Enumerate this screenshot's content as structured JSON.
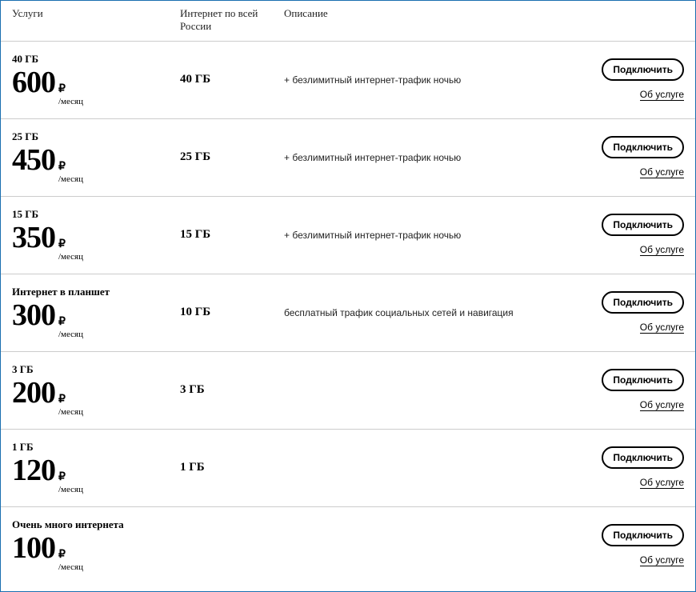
{
  "headers": {
    "service": "Услуги",
    "internet": "Интернет по всей России",
    "description": "Описание"
  },
  "currency_symbol": "₽",
  "period_label": "/месяц",
  "connect_label": "Подключить",
  "about_label": "Об услуге",
  "plans": [
    {
      "title": "40 ГБ",
      "price": "600",
      "internet": "40 ГБ",
      "description": "+ безлимитный интернет-трафик ночью"
    },
    {
      "title": "25 ГБ",
      "price": "450",
      "internet": "25 ГБ",
      "description": "+ безлимитный интернет-трафик ночью"
    },
    {
      "title": "15 ГБ",
      "price": "350",
      "internet": "15 ГБ",
      "description": "+ безлимитный интернет-трафик ночью"
    },
    {
      "title": "Интернет в планшет",
      "price": "300",
      "internet": "10 ГБ",
      "description": "бесплатный трафик социальных сетей и навигация"
    },
    {
      "title": "3 ГБ",
      "price": "200",
      "internet": "3 ГБ",
      "description": ""
    },
    {
      "title": "1 ГБ",
      "price": "120",
      "internet": "1 ГБ",
      "description": ""
    },
    {
      "title": "Очень много интернета",
      "price": "100",
      "internet": "",
      "description": ""
    }
  ],
  "styling": {
    "border_color": "#1a6fb0",
    "row_border_color": "#cccccc",
    "price_fontsize": 38,
    "title_fontsize": 13,
    "header_fontsize": 13,
    "button_border_radius": 14,
    "font_family_serif": "Georgia",
    "font_family_sans": "Arial"
  }
}
